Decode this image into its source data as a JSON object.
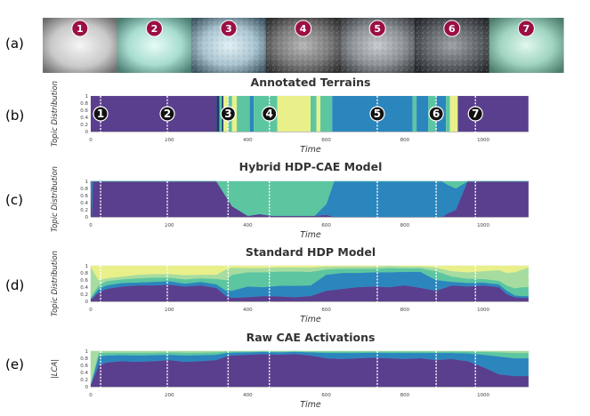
{
  "panel_labels": [
    "(a)",
    "(b)",
    "(c)",
    "(d)",
    "(e)"
  ],
  "terrain_images": {
    "labels": [
      "1",
      "2",
      "3",
      "4",
      "5",
      "6",
      "7"
    ],
    "badge_color": "#9b1044"
  },
  "colors": {
    "purple": "#5a3f8e",
    "blue": "#2b86bd",
    "teal": "#5cc6a0",
    "lightgreen": "#a7dca0",
    "yellow": "#e9f08a",
    "orange": "#f29e4c",
    "darkblue": "#1e3a6e",
    "gridline": "#dddddd",
    "marker_line": "#ffffff"
  },
  "chart_data": [
    {
      "id": "b",
      "type": "area",
      "title": "Annotated Terrains",
      "xlabel": "Time",
      "ylabel": "Topic Distribution",
      "xlim": [
        0,
        1120
      ],
      "ylim": [
        0,
        1
      ],
      "xticks": [
        "0",
        "200",
        "400",
        "600",
        "800",
        "1000"
      ],
      "yticks": [
        "0",
        "0.2",
        "0.4",
        "0.6",
        "0.8",
        "1"
      ],
      "markers": [
        {
          "label": "1",
          "x": 25
        },
        {
          "label": "2",
          "x": 195
        },
        {
          "label": "3",
          "x": 350
        },
        {
          "label": "4",
          "x": 455
        },
        {
          "label": "5",
          "x": 730
        },
        {
          "label": "6",
          "x": 880
        },
        {
          "label": "7",
          "x": 980
        }
      ],
      "segments": [
        {
          "start": 0,
          "end": 320,
          "topic": "purple"
        },
        {
          "start": 320,
          "end": 328,
          "topic": "darkblue"
        },
        {
          "start": 328,
          "end": 334,
          "topic": "teal"
        },
        {
          "start": 334,
          "end": 338,
          "topic": "darkblue"
        },
        {
          "start": 338,
          "end": 350,
          "topic": "yellow"
        },
        {
          "start": 350,
          "end": 360,
          "topic": "teal"
        },
        {
          "start": 360,
          "end": 372,
          "topic": "yellow"
        },
        {
          "start": 372,
          "end": 405,
          "topic": "teal"
        },
        {
          "start": 405,
          "end": 415,
          "topic": "blue"
        },
        {
          "start": 415,
          "end": 475,
          "topic": "teal"
        },
        {
          "start": 475,
          "end": 560,
          "topic": "yellow"
        },
        {
          "start": 560,
          "end": 575,
          "topic": "teal"
        },
        {
          "start": 575,
          "end": 585,
          "topic": "yellow"
        },
        {
          "start": 585,
          "end": 615,
          "topic": "teal"
        },
        {
          "start": 615,
          "end": 820,
          "topic": "blue"
        },
        {
          "start": 820,
          "end": 830,
          "topic": "teal"
        },
        {
          "start": 830,
          "end": 860,
          "topic": "blue"
        },
        {
          "start": 860,
          "end": 880,
          "topic": "teal"
        },
        {
          "start": 880,
          "end": 905,
          "topic": "blue"
        },
        {
          "start": 905,
          "end": 915,
          "topic": "teal"
        },
        {
          "start": 915,
          "end": 935,
          "topic": "yellow"
        },
        {
          "start": 935,
          "end": 1115,
          "topic": "purple"
        }
      ]
    },
    {
      "id": "c",
      "type": "area",
      "title": "Hybrid HDP-CAE Model",
      "xlabel": "Time",
      "ylabel": "Topic Distribution",
      "xlim": [
        0,
        1120
      ],
      "ylim": [
        0,
        1
      ],
      "xticks": [
        "0",
        "200",
        "400",
        "600",
        "800",
        "1000"
      ],
      "yticks": [
        "0",
        "0.2",
        "0.4",
        "0.6",
        "0.8",
        "1"
      ],
      "markers": [
        25,
        195,
        350,
        455,
        730,
        880,
        980
      ],
      "x": [
        0,
        3,
        5,
        320,
        360,
        400,
        430,
        460,
        570,
        600,
        620,
        880,
        895,
        910,
        930,
        960,
        1115
      ],
      "series": [
        {
          "name": "purple",
          "values": [
            1,
            0.0,
            1,
            1,
            0.3,
            0.03,
            0.08,
            0.03,
            0.03,
            0.06,
            0,
            0,
            0,
            0.1,
            0.2,
            1,
            1
          ]
        },
        {
          "name": "blue",
          "values": [
            0,
            1,
            0,
            0,
            0,
            0,
            0,
            0,
            0,
            0.3,
            1,
            1,
            1,
            0.8,
            0.6,
            0,
            0
          ]
        },
        {
          "name": "teal",
          "values": [
            0,
            0,
            0,
            0,
            0.7,
            0.97,
            0.92,
            0.97,
            0.97,
            0.64,
            0,
            0,
            0,
            0.1,
            0.2,
            0,
            0
          ]
        }
      ]
    },
    {
      "id": "d",
      "type": "area",
      "title": "Standard HDP Model",
      "xlabel": "Time",
      "ylabel": "Topic Distribution",
      "xlim": [
        0,
        1120
      ],
      "ylim": [
        0,
        1
      ],
      "xticks": [
        "0",
        "200",
        "400",
        "600",
        "800",
        "1000"
      ],
      "yticks": [
        "0",
        "0.2",
        "0.4",
        "0.6",
        "0.8",
        "1"
      ],
      "markers": [
        25,
        195,
        350,
        455,
        730,
        880,
        980
      ],
      "x": [
        0,
        20,
        40,
        80,
        120,
        160,
        200,
        240,
        280,
        320,
        345,
        360,
        400,
        440,
        480,
        520,
        560,
        600,
        640,
        680,
        720,
        760,
        800,
        840,
        880,
        920,
        960,
        1000,
        1040,
        1060,
        1080,
        1100,
        1115
      ],
      "series": [
        {
          "name": "purple",
          "values": [
            0.05,
            0.25,
            0.35,
            0.42,
            0.45,
            0.45,
            0.47,
            0.42,
            0.45,
            0.38,
            0.15,
            0.1,
            0.12,
            0.15,
            0.14,
            0.12,
            0.15,
            0.3,
            0.35,
            0.4,
            0.42,
            0.4,
            0.45,
            0.38,
            0.3,
            0.45,
            0.42,
            0.45,
            0.4,
            0.2,
            0.12,
            0.1,
            0.1
          ]
        },
        {
          "name": "blue",
          "values": [
            0.02,
            0.1,
            0.1,
            0.1,
            0.08,
            0.1,
            0.1,
            0.08,
            0.1,
            0.1,
            0.15,
            0.2,
            0.3,
            0.25,
            0.3,
            0.32,
            0.3,
            0.45,
            0.45,
            0.4,
            0.4,
            0.42,
            0.38,
            0.45,
            0.3,
            0.1,
            0.1,
            0.08,
            0.08,
            0.1,
            0.05,
            0.05,
            0.05
          ]
        },
        {
          "name": "teal",
          "values": [
            0.05,
            0.1,
            0.12,
            0.1,
            0.12,
            0.12,
            0.1,
            0.12,
            0.1,
            0.15,
            0.3,
            0.45,
            0.4,
            0.42,
            0.4,
            0.4,
            0.38,
            0.15,
            0.12,
            0.12,
            0.1,
            0.12,
            0.1,
            0.1,
            0.25,
            0.15,
            0.12,
            0.1,
            0.1,
            0.15,
            0.2,
            0.25,
            0.25
          ]
        },
        {
          "name": "lightgreen",
          "values": [
            0.85,
            0.15,
            0.08,
            0.08,
            0.1,
            0.1,
            0.1,
            0.12,
            0.1,
            0.12,
            0.3,
            0.2,
            0.12,
            0.12,
            0.12,
            0.12,
            0.12,
            0.08,
            0.06,
            0.06,
            0.06,
            0.06,
            0.05,
            0.05,
            0.1,
            0.15,
            0.18,
            0.22,
            0.3,
            0.35,
            0.45,
            0.5,
            0.55
          ]
        },
        {
          "name": "yellow",
          "values": [
            0.03,
            0.4,
            0.35,
            0.3,
            0.25,
            0.23,
            0.23,
            0.26,
            0.25,
            0.25,
            0.1,
            0.05,
            0.06,
            0.06,
            0.04,
            0.04,
            0.05,
            0.02,
            0.02,
            0.02,
            0.02,
            0,
            0.02,
            0.02,
            0.05,
            0.15,
            0.18,
            0.15,
            0.12,
            0.2,
            0.18,
            0.1,
            0.05
          ]
        }
      ]
    },
    {
      "id": "e",
      "type": "area",
      "title": "Raw CAE Activations",
      "xlabel": "Time",
      "ylabel": "|LCA|",
      "xlim": [
        0,
        1120
      ],
      "ylim": [
        0,
        1
      ],
      "xticks": [
        "0",
        "200",
        "400",
        "600",
        "800",
        "1000"
      ],
      "yticks": [
        "0",
        "0.2",
        "0.4",
        "0.6",
        "0.8",
        "1"
      ],
      "markers": [
        25,
        195,
        350,
        455,
        730,
        880,
        980
      ],
      "x": [
        0,
        20,
        40,
        80,
        120,
        160,
        200,
        240,
        280,
        320,
        345,
        360,
        400,
        440,
        480,
        520,
        560,
        600,
        640,
        680,
        720,
        760,
        800,
        840,
        880,
        920,
        960,
        1000,
        1040,
        1080,
        1115
      ],
      "series": [
        {
          "name": "purple",
          "values": [
            0.05,
            0.6,
            0.68,
            0.72,
            0.7,
            0.72,
            0.75,
            0.7,
            0.72,
            0.75,
            0.85,
            0.88,
            0.9,
            0.92,
            0.9,
            0.92,
            0.88,
            0.8,
            0.78,
            0.8,
            0.82,
            0.8,
            0.78,
            0.8,
            0.75,
            0.78,
            0.72,
            0.55,
            0.35,
            0.3,
            0.3
          ]
        },
        {
          "name": "blue",
          "values": [
            0.02,
            0.25,
            0.2,
            0.17,
            0.18,
            0.17,
            0.15,
            0.18,
            0.17,
            0.15,
            0.1,
            0.08,
            0.07,
            0.06,
            0.07,
            0.06,
            0.09,
            0.15,
            0.17,
            0.15,
            0.14,
            0.15,
            0.17,
            0.15,
            0.2,
            0.17,
            0.22,
            0.35,
            0.5,
            0.5,
            0.5
          ]
        },
        {
          "name": "teal",
          "values": [
            0.03,
            0.1,
            0.08,
            0.07,
            0.08,
            0.07,
            0.07,
            0.08,
            0.07,
            0.07,
            0.04,
            0.03,
            0.02,
            0.02,
            0.02,
            0.02,
            0.02,
            0.04,
            0.04,
            0.04,
            0.03,
            0.04,
            0.04,
            0.04,
            0.04,
            0.04,
            0.05,
            0.08,
            0.12,
            0.15,
            0.15
          ]
        },
        {
          "name": "lightgreen",
          "values": [
            0.9,
            0.05,
            0.04,
            0.04,
            0.04,
            0.04,
            0.03,
            0.04,
            0.04,
            0.03,
            0.01,
            0.01,
            0.01,
            0,
            0.01,
            0,
            0.01,
            0.01,
            0.01,
            0.01,
            0.01,
            0.01,
            0.01,
            0.01,
            0.01,
            0.01,
            0.01,
            0.02,
            0.03,
            0.05,
            0.05
          ]
        }
      ]
    }
  ]
}
